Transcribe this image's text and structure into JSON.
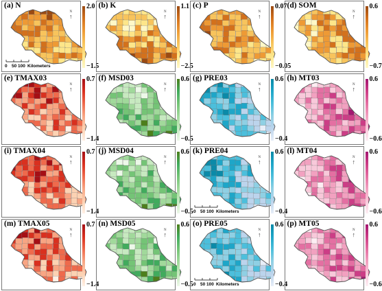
{
  "figure": {
    "scale_labels": [
      "0",
      "50",
      "100",
      "Kilometers"
    ],
    "north_label": "N",
    "panels": [
      {
        "id": "a",
        "label": "(a) N",
        "max": "2.0",
        "min": "−1.5",
        "palette": "yellow-orange-brown",
        "scalebar": true
      },
      {
        "id": "b",
        "label": "(b) K",
        "max": "1.1",
        "min": "−2.5",
        "palette": "yellow-orange-brown",
        "scalebar": false
      },
      {
        "id": "c",
        "label": "(c) P",
        "max": "0.07",
        "min": "−0.05",
        "palette": "yellow-orange-brown",
        "scalebar": false
      },
      {
        "id": "d",
        "label": "(d) SOM",
        "max": "0.6",
        "min": "−0.7",
        "palette": "yellow-orange-brown",
        "scalebar": false
      },
      {
        "id": "e",
        "label": "(e) TMAX03",
        "max": "0.7",
        "min": "−1.4",
        "palette": "red",
        "scalebar": false
      },
      {
        "id": "f",
        "label": "(f) MSD03",
        "max": "0.6",
        "min": "−0.5",
        "palette": "green",
        "scalebar": false
      },
      {
        "id": "g",
        "label": "(g) PRE03",
        "max": "0.6",
        "min": "−0.4",
        "palette": "blue",
        "scalebar": false
      },
      {
        "id": "h",
        "label": "(h) MT03",
        "max": "0.6",
        "min": "−0.6",
        "palette": "pink",
        "scalebar": false
      },
      {
        "id": "i",
        "label": "(i) TMAX04",
        "max": "0.7",
        "min": "−1.4",
        "palette": "red",
        "scalebar": false
      },
      {
        "id": "j",
        "label": "(j) MSD04",
        "max": "0.6",
        "min": "−0.5",
        "palette": "green",
        "scalebar": false
      },
      {
        "id": "k",
        "label": "(k) PRE04",
        "max": "0.6",
        "min": "−0.4",
        "palette": "blue",
        "scalebar": true
      },
      {
        "id": "l",
        "label": "(l) MT04",
        "max": "0.6",
        "min": "−0.6",
        "palette": "pink",
        "scalebar": false
      },
      {
        "id": "m",
        "label": "(m) TMAX05",
        "max": "0.7",
        "min": "−1.4",
        "palette": "red",
        "scalebar": false
      },
      {
        "id": "n",
        "label": "(n) MSD05",
        "max": "0.6",
        "min": "−0.5",
        "palette": "green",
        "scalebar": false
      },
      {
        "id": "o",
        "label": "(o) PRE05",
        "max": "0.6",
        "min": "−0.4",
        "palette": "blue",
        "scalebar": true
      },
      {
        "id": "p",
        "label": "(p) MT05",
        "max": "0.6",
        "min": "−0.6",
        "palette": "pink",
        "scalebar": false
      }
    ]
  },
  "palettes": {
    "yellow-orange-brown": [
      "#fff8c8",
      "#fde68a",
      "#f8c45c",
      "#ee9a35",
      "#d3711c",
      "#9b4a12"
    ],
    "red": [
      "#fff1e6",
      "#fcd2b3",
      "#f8a583",
      "#ef6a4c",
      "#d9301f",
      "#a50f15"
    ],
    "green": [
      "#edf8e9",
      "#c7e9c0",
      "#a1d99b",
      "#74c476",
      "#41ab5d",
      "#4d7f1c"
    ],
    "blue": [
      "#e8eef8",
      "#bcd4ec",
      "#8fd0e4",
      "#4cbfdc",
      "#1ea6c8",
      "#0b8aa8"
    ],
    "pink": [
      "#fdeef3",
      "#f8c9da",
      "#f2a1c0",
      "#e46fa2",
      "#cc3d86",
      "#a31670"
    ]
  }
}
